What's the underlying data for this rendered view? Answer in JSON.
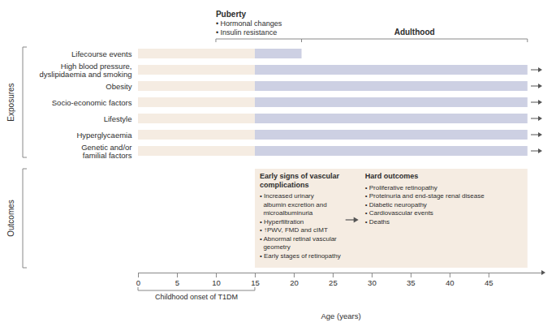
{
  "chart_data": {
    "type": "bar",
    "orientation": "horizontal",
    "stacked": true,
    "grid": false,
    "y_label": "Exposures",
    "x_label": "Age (years)",
    "categories": [
      "Lifecourse events",
      "High blood pressure,\ndyslipidaemia and smoking",
      "Obesity",
      "Socio-economic factors",
      "Lifestyle",
      "Hyperglycaemia",
      "Genetic and/or\nfamilial factors"
    ],
    "series": [
      {
        "color": "#f5ece2",
        "values": [
          15,
          15,
          15,
          15,
          15,
          15,
          15
        ]
      },
      {
        "color": "#cdd0e3",
        "values": [
          6,
          35,
          35,
          35,
          35,
          35,
          35
        ]
      }
    ],
    "arrows": [
      false,
      true,
      true,
      true,
      true,
      true,
      true
    ],
    "xlim": [
      0,
      52
    ],
    "xticks": [
      0,
      5,
      10,
      15,
      20,
      25,
      30,
      35,
      40,
      45
    ],
    "periods": [
      {
        "text": "Puberty",
        "items": [
          "• Hormonal changes",
          "• Insulin resistance"
        ],
        "x_start": 10,
        "x_end": 21
      },
      {
        "text": "Adulthood",
        "x_start": 21,
        "x_end": 50
      }
    ],
    "onset": {
      "text": "Childhood onset of T1DM",
      "x_start": 0,
      "x_end": 15
    },
    "outcomes": {
      "label": "Outcomes",
      "x_start": 15,
      "x_end": 50,
      "color": "#f5ece2",
      "early_signs": {
        "title": "Early signs of vascular\ncomplications",
        "items": [
          "• Increased urinary\n  albumin excretion and\n  microalbuminuria",
          "• Hyperfiltration",
          "• ↑PWV, FMD and cIMT",
          "• Abnormal retinal vascular\n  geometry",
          "• Early stages of retinopathy"
        ]
      },
      "hard_outcomes": {
        "title": "Hard outcomes",
        "items": [
          "• Proliferative retinopathy",
          "• Proteinuria and end-stage renal disease",
          "• Diabetic neuropathy",
          "• Cardiovascular events",
          "• Deaths"
        ]
      }
    }
  }
}
